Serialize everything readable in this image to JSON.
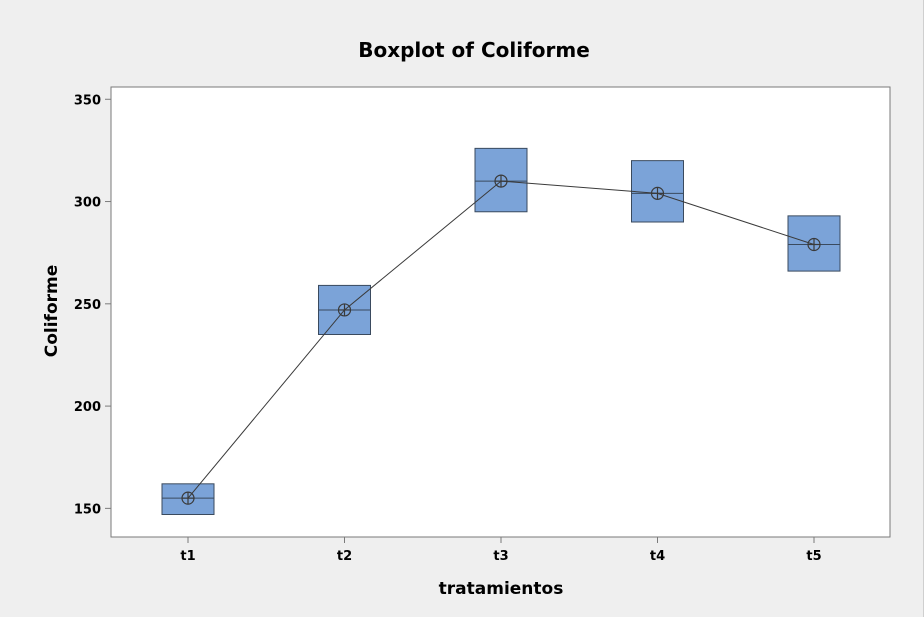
{
  "chart_data": {
    "type": "boxplot",
    "title": "Boxplot of Coliforme",
    "xlabel": "tratamientos",
    "ylabel": "Coliforme",
    "ylim": [
      136,
      356
    ],
    "yticks": [
      150,
      200,
      250,
      300,
      350
    ],
    "categories": [
      "t1",
      "t2",
      "t3",
      "t4",
      "t5"
    ],
    "boxes": [
      {
        "category": "t1",
        "q1": 147,
        "median": 155,
        "q3": 162,
        "mean": 155
      },
      {
        "category": "t2",
        "q1": 235,
        "median": 247,
        "q3": 259,
        "mean": 247
      },
      {
        "category": "t3",
        "q1": 295,
        "median": 310,
        "q3": 326,
        "mean": 310
      },
      {
        "category": "t4",
        "q1": 290,
        "median": 304,
        "q3": 320,
        "mean": 304
      },
      {
        "category": "t5",
        "q1": 266,
        "median": 279,
        "q3": 293,
        "mean": 279
      }
    ],
    "mean_connect_line": true,
    "grid": false,
    "colors": {
      "figure_background": "#efefef",
      "plot_background": "#ffffff",
      "box_fill": "#7ba3d8",
      "box_stroke": "#3a4a5e",
      "line": "#3a3a3a",
      "axis": "#7a7a7a"
    }
  }
}
